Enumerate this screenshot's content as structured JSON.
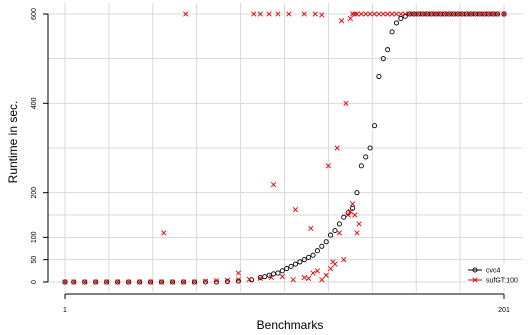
{
  "chart_data": {
    "type": "scatter",
    "title": "",
    "xlabel": "Benchmarks",
    "ylabel": "Runtime in sec.",
    "xlim": [
      1,
      201
    ],
    "ylim": [
      0,
      600
    ],
    "x_ticks": [
      1,
      201
    ],
    "y_ticks": [
      0,
      50,
      100,
      200,
      400,
      600
    ],
    "grid": true,
    "legend_placement": "bottom-right",
    "colors": {
      "cvc4": "#000000",
      "sufGT": "#dd0000",
      "grid": "#d9d9d9"
    },
    "series": [
      {
        "name": "cvc4",
        "marker": "circle",
        "x": [
          1,
          5,
          10,
          15,
          20,
          25,
          30,
          35,
          40,
          45,
          50,
          55,
          60,
          65,
          70,
          75,
          80,
          86,
          90,
          92,
          94,
          96,
          98,
          100,
          102,
          104,
          106,
          108,
          110,
          112,
          114,
          116,
          118,
          120,
          122,
          124,
          126,
          128,
          130,
          132,
          134,
          136,
          138,
          140,
          142,
          144,
          146,
          148,
          150,
          152,
          154,
          156,
          158,
          160,
          162,
          164,
          166,
          168,
          170,
          172,
          174,
          176,
          178,
          180,
          182,
          184,
          186,
          188,
          190,
          192,
          194,
          196,
          198,
          201
        ],
        "y": [
          0,
          0,
          0,
          0,
          0,
          0,
          0,
          0,
          0,
          0,
          0,
          0,
          0,
          0,
          0,
          1,
          2,
          5,
          10,
          12,
          15,
          18,
          20,
          25,
          30,
          35,
          40,
          45,
          50,
          55,
          60,
          70,
          80,
          90,
          105,
          115,
          130,
          145,
          155,
          165,
          200,
          260,
          280,
          300,
          350,
          460,
          500,
          520,
          560,
          580,
          590,
          595,
          600,
          600,
          600,
          600,
          600,
          600,
          600,
          600,
          600,
          600,
          600,
          600,
          600,
          600,
          600,
          600,
          600,
          600,
          600,
          600,
          600,
          600
        ]
      },
      {
        "name": "sufGT:100",
        "marker": "x",
        "x": [
          1,
          5,
          10,
          15,
          20,
          25,
          30,
          35,
          40,
          45,
          50,
          55,
          60,
          65,
          70,
          75,
          80,
          85,
          90,
          95,
          100,
          105,
          110,
          112,
          114,
          116,
          118,
          120,
          122,
          124,
          126,
          128,
          130,
          131,
          132,
          133,
          134,
          135,
          136,
          138,
          140,
          142,
          144,
          146,
          148,
          150,
          152,
          154,
          156,
          158,
          160,
          162,
          164,
          166,
          168,
          170,
          172,
          174,
          176,
          178,
          180,
          182,
          184,
          186,
          188,
          190,
          192,
          194,
          196,
          198,
          201,
          46,
          56,
          80,
          87,
          90,
          94,
          96,
          98,
          103,
          106,
          110,
          113,
          115,
          118,
          121,
          123,
          125,
          127,
          129,
          131,
          132,
          133,
          134
        ],
        "y": [
          0,
          0,
          0,
          0,
          0,
          0,
          0,
          0,
          0,
          0,
          0,
          0,
          0,
          2,
          3,
          4,
          5,
          6,
          8,
          10,
          12,
          5,
          10,
          8,
          20,
          25,
          5,
          15,
          30,
          40,
          110,
          50,
          150,
          158,
          175,
          150,
          110,
          130,
          600,
          600,
          600,
          600,
          600,
          600,
          600,
          600,
          600,
          600,
          600,
          600,
          600,
          600,
          600,
          600,
          600,
          600,
          600,
          600,
          600,
          600,
          600,
          600,
          600,
          600,
          600,
          600,
          600,
          600,
          600,
          600,
          600,
          110,
          600,
          20,
          600,
          600,
          600,
          218,
          600,
          600,
          162,
          600,
          120,
          600,
          598,
          260,
          45,
          300,
          585,
          400,
          590,
          600,
          600,
          600
        ]
      }
    ]
  }
}
